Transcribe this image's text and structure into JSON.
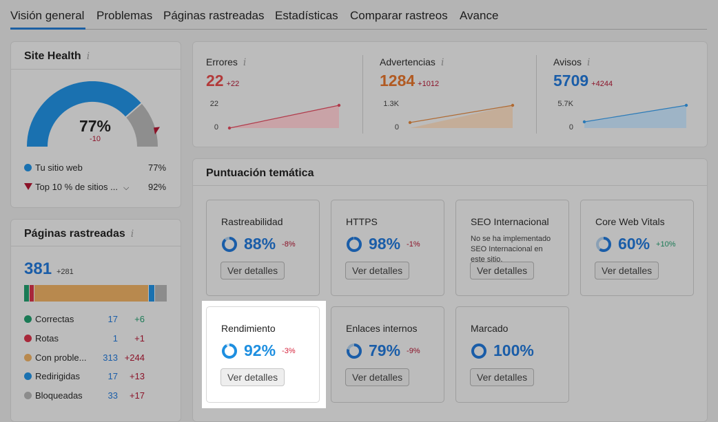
{
  "tabs": [
    "Visión general",
    "Problemas",
    "Páginas rastreadas",
    "Estadísticas",
    "Comparar rastreos",
    "Avance"
  ],
  "site_health": {
    "title": "Site Health",
    "info_icon": "i",
    "value": "77%",
    "delta": "-10",
    "gauge_fraction": 0.77,
    "top10_fraction": 0.92,
    "legend": [
      {
        "label": "Tu sitio web",
        "value": "77%",
        "color": "#1a71b0"
      },
      {
        "label": "Top 10 % de sitios ...",
        "value": "92%",
        "color": "#8b1228"
      }
    ]
  },
  "crawled": {
    "title": "Páginas rastreadas",
    "info_icon": "i",
    "count": "381",
    "count_delta": "+281",
    "rows": [
      {
        "label": "Correctas",
        "num": "17",
        "delta": "+6",
        "color": "#1a7a55",
        "delta_color": "#1a7a55"
      },
      {
        "label": "Rotas",
        "num": "1",
        "delta": "+1",
        "color": "#a8283a",
        "delta_color": "#8b1228"
      },
      {
        "label": "Con proble...",
        "num": "313",
        "delta": "+244",
        "color": "#b8894e",
        "delta_color": "#8b1228"
      },
      {
        "label": "Redirigidas",
        "num": "17",
        "delta": "+13",
        "color": "#1a71b0",
        "delta_color": "#8b1228"
      },
      {
        "label": "Bloqueadas",
        "num": "33",
        "delta": "+17",
        "color": "#8c8c8c",
        "delta_color": "#8b1228"
      }
    ]
  },
  "metrics": [
    {
      "label": "Errores",
      "info_icon": "i",
      "value": "22",
      "delta": "+22",
      "color": "#b23a3a",
      "ymax_label": "22",
      "ymin_label": "0",
      "line": "#b03a4a",
      "fill": "#c9a3a7"
    },
    {
      "label": "Advertencias",
      "info_icon": "i",
      "value": "1284",
      "delta": "+1012",
      "color": "#b15a22",
      "ymax_label": "1.3K",
      "ymin_label": "0",
      "line": "#b06a32",
      "fill": "#c4ad98"
    },
    {
      "label": "Avisos",
      "info_icon": "i",
      "value": "5709",
      "delta": "+4244",
      "color": "#1a5da8",
      "ymax_label": "5.7K",
      "ymin_label": "0",
      "line": "#2a7ab8",
      "fill": "#9eb4c6"
    }
  ],
  "thematic": {
    "title": "Puntuación temática",
    "button_label": "Ver detalles",
    "cards": [
      {
        "title": "Rastreabilidad",
        "score": "88%",
        "fraction": 0.88,
        "delta": "-8%",
        "delta_color": "#8b1228"
      },
      {
        "title": "HTTPS",
        "score": "98%",
        "fraction": 0.98,
        "delta": "-1%",
        "delta_color": "#8b1228"
      },
      {
        "title": "SEO Internacional",
        "note": "No se ha implementado SEO Internacional en este sitio."
      },
      {
        "title": "Core Web Vitals",
        "score": "60%",
        "fraction": 0.6,
        "delta": "+10%",
        "delta_color": "#1a7a55"
      },
      {
        "title": "Rendimiento",
        "score": "92%",
        "fraction": 0.92,
        "delta": "-3%",
        "delta_color": "#d6243d",
        "highlight": true
      },
      {
        "title": "Enlaces internos",
        "score": "79%",
        "fraction": 0.79,
        "delta": "-9%",
        "delta_color": "#8b1228"
      },
      {
        "title": "Marcado",
        "score": "100%",
        "fraction": 1.0,
        "delta": ""
      }
    ]
  }
}
